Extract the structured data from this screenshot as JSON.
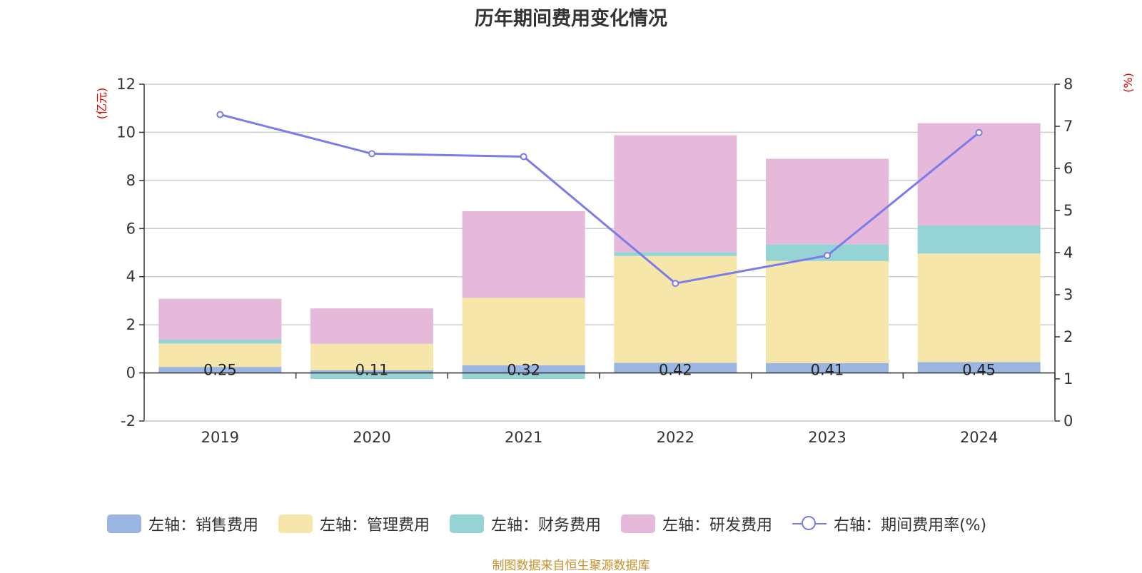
{
  "title": "历年期间费用变化情况",
  "source_note": "制图数据来自恒生聚源数据库",
  "colors": {
    "sales": "#9bb5e2",
    "admin": "#f7e6a9",
    "finance": "#96d3d4",
    "rd": "#e6b8d9",
    "rate": "#7b7bea",
    "unit": "#e00000"
  },
  "legend": [
    {
      "label": "左轴：销售费用",
      "type": "bar",
      "color": "#9bb5e2"
    },
    {
      "label": "左轴：管理费用",
      "type": "bar",
      "color": "#f7e6a9"
    },
    {
      "label": "左轴：财务费用",
      "type": "bar",
      "color": "#96d3d4"
    },
    {
      "label": "左轴：研发费用",
      "type": "bar",
      "color": "#e6b8d9"
    },
    {
      "label": "右轴：期间费用率(%)",
      "type": "line",
      "color": "#7b7bea"
    }
  ],
  "chart_data": {
    "type": "bar",
    "stacked": true,
    "title": "历年期间费用变化情况",
    "categories": [
      "2019",
      "2020",
      "2021",
      "2022",
      "2023",
      "2024"
    ],
    "y_left": {
      "unit": "(亿元)",
      "ylim": [
        -2,
        12
      ],
      "ticks": [
        -2,
        0,
        2,
        4,
        6,
        8,
        10,
        12
      ]
    },
    "y_right": {
      "unit": "(%)",
      "ylim": [
        0,
        8
      ],
      "ticks": [
        0,
        1,
        2,
        3,
        4,
        5,
        6,
        7,
        8
      ]
    },
    "grid": true,
    "legend_position": "bottom",
    "series": [
      {
        "name": "左轴：销售费用",
        "axis": "left",
        "type": "bar",
        "values": [
          0.25,
          0.11,
          0.32,
          0.42,
          0.41,
          0.45
        ],
        "data_labels": [
          "0.25",
          "0.11",
          "0.32",
          "0.42",
          "0.41",
          "0.45"
        ]
      },
      {
        "name": "左轴：管理费用",
        "axis": "left",
        "type": "bar",
        "values": [
          0.97,
          1.1,
          2.8,
          4.44,
          4.24,
          4.51
        ]
      },
      {
        "name": "左轴：财务费用",
        "axis": "left",
        "type": "bar",
        "values": [
          0.18,
          -0.25,
          -0.25,
          0.16,
          0.7,
          1.17
        ]
      },
      {
        "name": "左轴：研发费用",
        "axis": "left",
        "type": "bar",
        "values": [
          1.68,
          1.47,
          3.6,
          4.86,
          3.55,
          4.25
        ]
      },
      {
        "name": "右轴：期间费用率(%)",
        "axis": "right",
        "type": "line",
        "values": [
          7.28,
          6.35,
          6.28,
          3.27,
          3.93,
          6.85
        ]
      }
    ]
  }
}
